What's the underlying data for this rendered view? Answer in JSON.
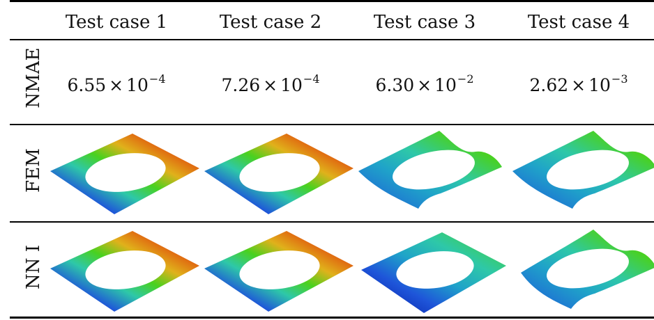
{
  "columns": [
    "Test case 1",
    "Test case 2",
    "Test case 3",
    "Test case 4"
  ],
  "rows": {
    "nmae": {
      "label": "NMAE",
      "values": [
        {
          "mantissa": "6.55",
          "times": "×",
          "base": "10",
          "exponent": "−4"
        },
        {
          "mantissa": "7.26",
          "times": "×",
          "base": "10",
          "exponent": "−4"
        },
        {
          "mantissa": "6.30",
          "times": "×",
          "base": "10",
          "exponent": "−2"
        },
        {
          "mantissa": "2.62",
          "times": "×",
          "base": "10",
          "exponent": "−3"
        }
      ]
    },
    "fem": {
      "label": "FEM"
    },
    "nn": {
      "label": "NN I"
    }
  },
  "colormap": [
    "#00109a",
    "#1e55d9",
    "#1fa3c9",
    "#2ec8a8",
    "#49d11f",
    "#a8d11a",
    "#e0b11b",
    "#e0600f",
    "#cc1010"
  ]
}
